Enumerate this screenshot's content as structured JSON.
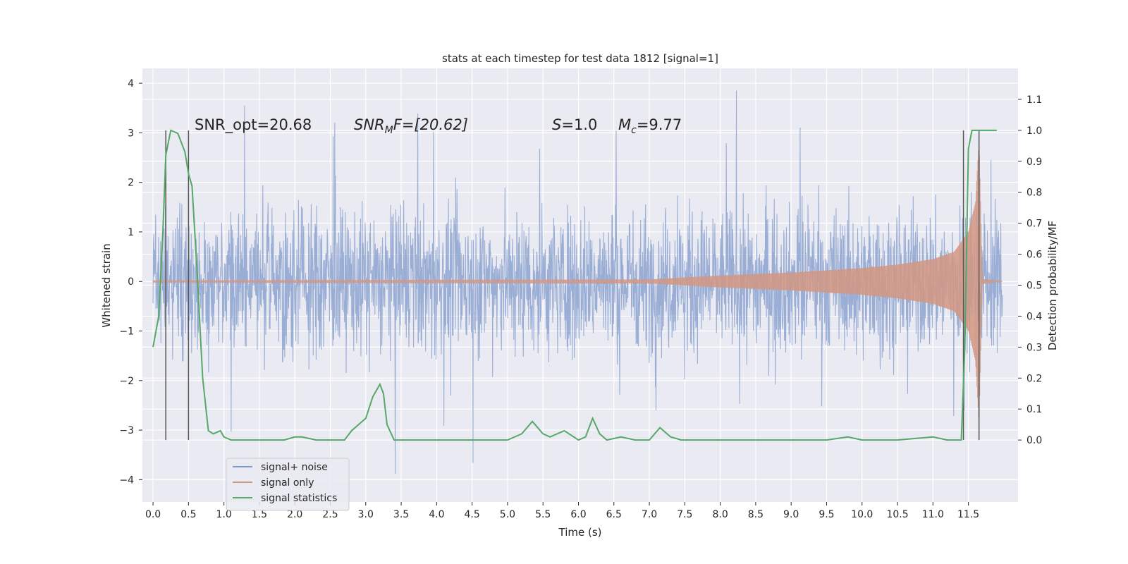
{
  "chart_data": {
    "type": "line",
    "title": "stats at each timestep for test data 1812 [signal=1]",
    "xlabel": "Time (s)",
    "ylabel_left": "Whitened strain",
    "ylabel_right": "Detection probability/MF",
    "xlim": [
      -0.15,
      12.2
    ],
    "ylim_left": [
      -4.45,
      4.3
    ],
    "ylim_right": [
      -0.2,
      1.2
    ],
    "x_ticks": [
      "0.0",
      "0.5",
      "1.0",
      "1.5",
      "2.0",
      "2.5",
      "3.0",
      "3.5",
      "4.0",
      "4.5",
      "5.0",
      "5.5",
      "6.0",
      "6.5",
      "7.0",
      "7.5",
      "8.0",
      "8.5",
      "9.0",
      "9.5",
      "10.0",
      "10.5",
      "11.0",
      "11.5"
    ],
    "y_left_ticks": [
      "4",
      "3",
      "2",
      "1",
      "0",
      "−1",
      "−2",
      "−3",
      "−4"
    ],
    "y_right_ticks": [
      "1.1",
      "1.0",
      "0.9",
      "0.8",
      "0.7",
      "0.6",
      "0.5",
      "0.4",
      "0.3",
      "0.2",
      "0.1",
      "0.0"
    ],
    "grid": true,
    "legend_position": "lower-left",
    "annotations": {
      "snr_opt": "SNR_opt=20.68",
      "snr_mf_base": "SNR",
      "snr_mf_sub": "M",
      "snr_mf_rest": "F=[20.62]",
      "s_italic": "S",
      "s_rest": "=1.0",
      "mc_italic": "M",
      "mc_sub": "c",
      "mc_rest": "=9.77"
    },
    "vertical_markers": [
      0.18,
      0.5,
      11.43,
      11.65
    ],
    "series": [
      {
        "name": "signal+ noise",
        "color": "#7f99cb",
        "description_values": "noise band roughly -2.4..2.6 with spikes to +3.8 / -4.1, x from 0.0 to 11.98"
      },
      {
        "name": "signal only",
        "color": "#d29782",
        "envelope_x": [
          0.0,
          7.0,
          8.0,
          9.0,
          10.0,
          10.5,
          11.0,
          11.3,
          11.5,
          11.6,
          11.65,
          11.7,
          11.98
        ],
        "envelope_amp": [
          0.02,
          0.04,
          0.12,
          0.18,
          0.27,
          0.34,
          0.45,
          0.6,
          1.0,
          1.6,
          2.9,
          0.05,
          0.0
        ]
      },
      {
        "name": "signal statistics",
        "color": "#55a868",
        "x": [
          0.0,
          0.08,
          0.14,
          0.18,
          0.25,
          0.35,
          0.45,
          0.5,
          0.55,
          0.62,
          0.7,
          0.78,
          0.85,
          0.95,
          1.0,
          1.1,
          1.3,
          1.6,
          1.85,
          2.0,
          2.1,
          2.3,
          2.5,
          2.6,
          2.7,
          2.8,
          2.9,
          3.0,
          3.1,
          3.2,
          3.25,
          3.3,
          3.4,
          3.5,
          4.0,
          4.5,
          5.0,
          5.2,
          5.35,
          5.5,
          5.6,
          5.8,
          6.0,
          6.1,
          6.2,
          6.3,
          6.4,
          6.6,
          6.8,
          7.0,
          7.15,
          7.3,
          7.45,
          8.0,
          9.5,
          9.8,
          10.0,
          10.5,
          11.0,
          11.2,
          11.4,
          11.45,
          11.5,
          11.55,
          11.6,
          11.7,
          11.9
        ],
        "y": [
          0.3,
          0.4,
          0.68,
          0.92,
          1.0,
          0.99,
          0.93,
          0.86,
          0.82,
          0.55,
          0.2,
          0.03,
          0.02,
          0.03,
          0.01,
          0.0,
          0.0,
          0.0,
          0.0,
          0.01,
          0.01,
          0.0,
          0.0,
          0.0,
          0.0,
          0.03,
          0.05,
          0.07,
          0.14,
          0.18,
          0.15,
          0.05,
          0.0,
          0.0,
          0.0,
          0.0,
          0.0,
          0.02,
          0.06,
          0.02,
          0.01,
          0.03,
          0.0,
          0.01,
          0.07,
          0.02,
          0.0,
          0.01,
          0.0,
          0.0,
          0.04,
          0.01,
          0.0,
          0.0,
          0.0,
          0.01,
          0.0,
          0.0,
          0.01,
          0.0,
          0.0,
          0.3,
          0.94,
          1.0,
          1.0,
          1.0,
          1.0
        ]
      }
    ]
  },
  "legend": {
    "items": [
      {
        "label": "signal+ noise",
        "color": "#7f99cb"
      },
      {
        "label": "signal only",
        "color": "#d29782"
      },
      {
        "label": "signal statistics",
        "color": "#55a868"
      }
    ]
  }
}
